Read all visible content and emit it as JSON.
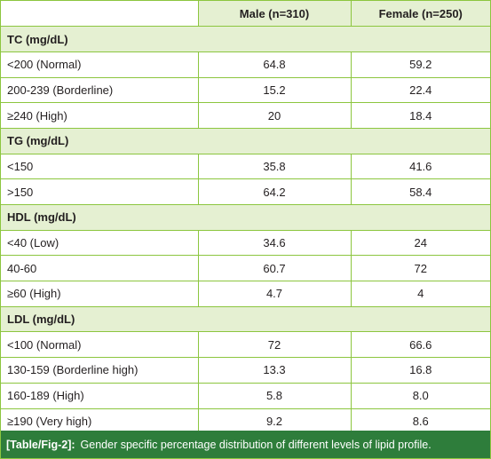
{
  "header": {
    "col1": "",
    "col2": "Male (n=310)",
    "col3": "Female (n=250)"
  },
  "sections": [
    {
      "title": "TC (mg/dL)",
      "rows": [
        {
          "label": "<200 (Normal)",
          "male": "64.8",
          "female": "59.2"
        },
        {
          "label": "200-239 (Borderline)",
          "male": "15.2",
          "female": "22.4"
        },
        {
          "label": "≥240 (High)",
          "male": "20",
          "female": "18.4"
        }
      ]
    },
    {
      "title": "TG (mg/dL)",
      "rows": [
        {
          "label": "<150",
          "male": "35.8",
          "female": "41.6"
        },
        {
          "label": ">150",
          "male": "64.2",
          "female": "58.4"
        }
      ]
    },
    {
      "title": "HDL (mg/dL)",
      "rows": [
        {
          "label": "<40 (Low)",
          "male": "34.6",
          "female": "24"
        },
        {
          "label": "40-60",
          "male": "60.7",
          "female": "72"
        },
        {
          "label": "≥60 (High)",
          "male": "4.7",
          "female": "4"
        }
      ]
    },
    {
      "title": "LDL (mg/dL)",
      "rows": [
        {
          "label": "<100 (Normal)",
          "male": "72",
          "female": "66.6"
        },
        {
          "label": "130-159 (Borderline high)",
          "male": "13.3",
          "female": "16.8"
        },
        {
          "label": "160-189 (High)",
          "male": "5.8",
          "female": "8.0"
        },
        {
          "label": "≥190 (Very high)",
          "male": "9.2",
          "female": "8.6"
        }
      ]
    }
  ],
  "caption": {
    "ref": "[Table/Fig-2]:",
    "text": "Gender specific percentage distribution of different levels of lipid profile."
  },
  "colors": {
    "border": "#8cc63f",
    "header_bg": "#e5f0d2",
    "caption_bg": "#2e7d3b"
  }
}
